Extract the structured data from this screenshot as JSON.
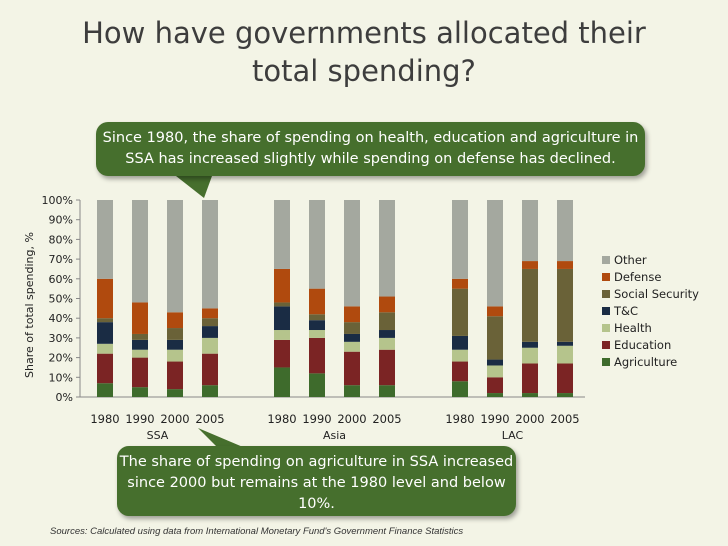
{
  "title_line1": "How have governments allocated their",
  "title_line2": "total spending?",
  "callout_top": "Since 1980, the share of spending on health, education and agriculture in SSA has increased slightly while spending on defense has declined.",
  "callout_bottom": "The share of spending on agriculture in SSA increased since 2000 but remains at the 1980 level and below 10%.",
  "source": "Sources: Calculated using data from International Monetary Fund's Government Finance Statistics",
  "chart_data": {
    "type": "bar",
    "stacked": true,
    "ylabel": "Share of total spending, %",
    "ylim": [
      0,
      100
    ],
    "yticks": [
      "0%",
      "10%",
      "20%",
      "30%",
      "40%",
      "50%",
      "60%",
      "70%",
      "80%",
      "90%",
      "100%"
    ],
    "groups": [
      {
        "name": "SSA",
        "years": [
          "1980",
          "1990",
          "2000",
          "2005"
        ]
      },
      {
        "name": "Asia",
        "years": [
          "1980",
          "1990",
          "2000",
          "2005"
        ]
      },
      {
        "name": "LAC",
        "years": [
          "1980",
          "1990",
          "2000",
          "2005"
        ]
      }
    ],
    "colors": {
      "Agriculture": "#3e6b2c",
      "Education": "#7b2424",
      "Health": "#b5c48c",
      "T&C": "#1a2c44",
      "Social Security": "#6a6238",
      "Defense": "#b04a0e",
      "Other": "#a4a89f"
    },
    "legend": [
      "Other",
      "Defense",
      "Social Security",
      "T&C",
      "Health",
      "Education",
      "Agriculture"
    ],
    "series": [
      {
        "name": "Agriculture",
        "values": [
          7,
          5,
          4,
          6,
          15,
          12,
          6,
          6,
          8,
          2,
          2,
          2
        ]
      },
      {
        "name": "Education",
        "values": [
          15,
          15,
          14,
          16,
          14,
          18,
          17,
          18,
          10,
          8,
          15,
          15
        ]
      },
      {
        "name": "Health",
        "values": [
          5,
          4,
          6,
          8,
          5,
          4,
          5,
          6,
          6,
          6,
          8,
          9
        ]
      },
      {
        "name": "T&C",
        "values": [
          11,
          5,
          5,
          6,
          12,
          5,
          4,
          4,
          7,
          3,
          3,
          2
        ]
      },
      {
        "name": "Social Security",
        "values": [
          2,
          3,
          6,
          4,
          2,
          3,
          6,
          9,
          24,
          22,
          37,
          37
        ]
      },
      {
        "name": "Defense",
        "values": [
          20,
          16,
          8,
          5,
          17,
          13,
          8,
          8,
          5,
          5,
          4,
          4
        ]
      },
      {
        "name": "Other",
        "values": [
          40,
          52,
          57,
          55,
          35,
          45,
          54,
          49,
          40,
          54,
          31,
          31
        ]
      }
    ]
  }
}
